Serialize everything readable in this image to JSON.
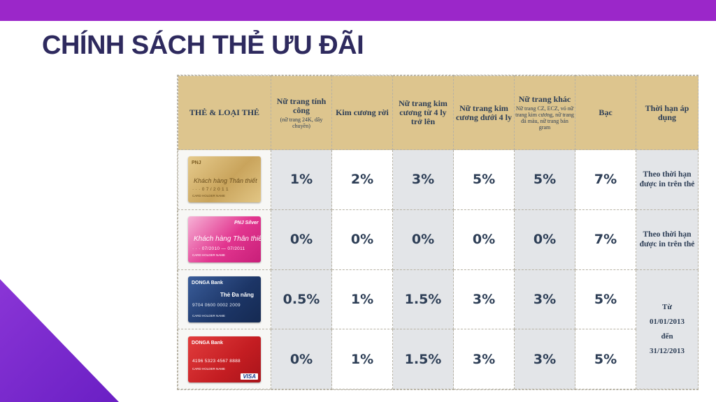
{
  "slide": {
    "title": "CHÍNH SÁCH THẺ ƯU ĐÃI",
    "colors": {
      "top_bar": "#9b27c9",
      "title": "#2e2a5e",
      "header_bg": "#ddc58e",
      "shade": "#e3e5e8",
      "corner": "#7a2bd0"
    }
  },
  "table": {
    "headers": [
      {
        "label": "THẺ & LOẠI THẺ",
        "sub": ""
      },
      {
        "label": "Nữ trang tính công",
        "sub": "(nữ trang 24K, dây chuyền)"
      },
      {
        "label": "Kim cương rời",
        "sub": ""
      },
      {
        "label": "Nữ trang kim cương từ 4 ly trở lên",
        "sub": ""
      },
      {
        "label": "Nữ trang kim cương dưới 4 ly",
        "sub": ""
      },
      {
        "label": "Nữ trang khác",
        "sub": "Nữ trang CZ, ECZ, vỏ nữ trang kim cương, nữ trang đá màu, nữ trang bán gram"
      },
      {
        "label": "Bạc",
        "sub": ""
      },
      {
        "label": "Thời hạn áp dụng",
        "sub": ""
      }
    ],
    "rows": [
      {
        "card": {
          "style": "gold",
          "brand": "PNJ",
          "label": "Khách hàng Thân thiết",
          "number": "· · · 0 7 / 2 0 1 1",
          "holder": "CARD HOLDER NAME"
        },
        "values": [
          "1%",
          "2%",
          "3%",
          "5%",
          "5%",
          "7%"
        ],
        "period": "Theo thời hạn được in trên thẻ"
      },
      {
        "card": {
          "style": "pink",
          "brand": "PNJ Silver",
          "label": "Khách hàng Thân thiết",
          "number": "· · · 07/2010 — 07/2011",
          "holder": "CARD HOLDER NAME"
        },
        "values": [
          "0%",
          "0%",
          "0%",
          "0%",
          "0%",
          "7%"
        ],
        "period": "Theo thời hạn được in trên thẻ"
      },
      {
        "card": {
          "style": "blue",
          "brand": "DONGA Bank",
          "label": "Thẻ Đa năng",
          "number": "9704 0600 0002 2009",
          "holder": "CARD HOLDER NAME"
        },
        "values": [
          "0.5%",
          "1%",
          "1.5%",
          "3%",
          "3%",
          "5%"
        ]
      },
      {
        "card": {
          "style": "red",
          "brand": "DONGA Bank",
          "label": "",
          "number": "4196 5323 4567 8888",
          "holder": "CARD HOLDER NAME",
          "network": "VISA"
        },
        "values": [
          "0%",
          "1%",
          "1.5%",
          "3%",
          "3%",
          "5%"
        ]
      }
    ],
    "period_shared": {
      "line1": "Từ",
      "line2": "01/01/2013",
      "line3": "đến",
      "line4": "31/12/2013"
    }
  }
}
